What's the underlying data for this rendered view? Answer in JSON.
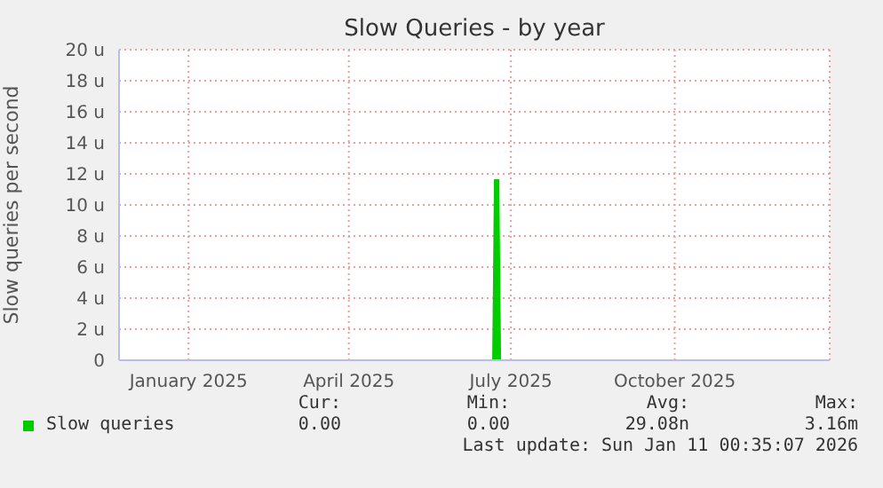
{
  "chart_data": {
    "type": "area",
    "title": "Slow Queries - by year",
    "ylabel": "Slow queries per second",
    "x": [
      "2024-12-08",
      "2025-07-06",
      "2025-07-07",
      "2025-07-09",
      "2025-07-10",
      "2026-01-11"
    ],
    "series": [
      {
        "name": "Slow queries",
        "color": "#00cc00",
        "values": [
          0,
          0,
          11.6,
          11.6,
          0,
          0
        ]
      }
    ],
    "xlim": [
      "2024-12-08",
      "2026-01-11"
    ],
    "xticks": [
      {
        "value": "2025-01-16",
        "label": "January 2025"
      },
      {
        "value": "2025-04-16",
        "label": "April 2025"
      },
      {
        "value": "2025-07-16",
        "label": "July 2025"
      },
      {
        "value": "2025-10-16",
        "label": "October 2025"
      }
    ],
    "ylim": [
      0,
      20
    ],
    "yticks": [
      0,
      {
        "value": 2,
        "label": "2 u"
      },
      {
        "value": 4,
        "label": "4 u"
      },
      {
        "value": 6,
        "label": "6 u"
      },
      {
        "value": 8,
        "label": "8 u"
      },
      {
        "value": 10,
        "label": "10 u"
      },
      {
        "value": 12,
        "label": "12 u"
      },
      {
        "value": 14,
        "label": "14 u"
      },
      {
        "value": 16,
        "label": "16 u"
      },
      {
        "value": 18,
        "label": "18 u"
      },
      {
        "value": 20,
        "label": "20 u"
      }
    ],
    "grid": true,
    "legend": "bottom",
    "annotations": [
      "Cur:",
      "0.00",
      "Min:",
      "0.00",
      "Avg:",
      "29.08n",
      "Max:",
      "3.16m",
      "Last update: Sun Jan 11 00:35:07 2026"
    ]
  }
}
